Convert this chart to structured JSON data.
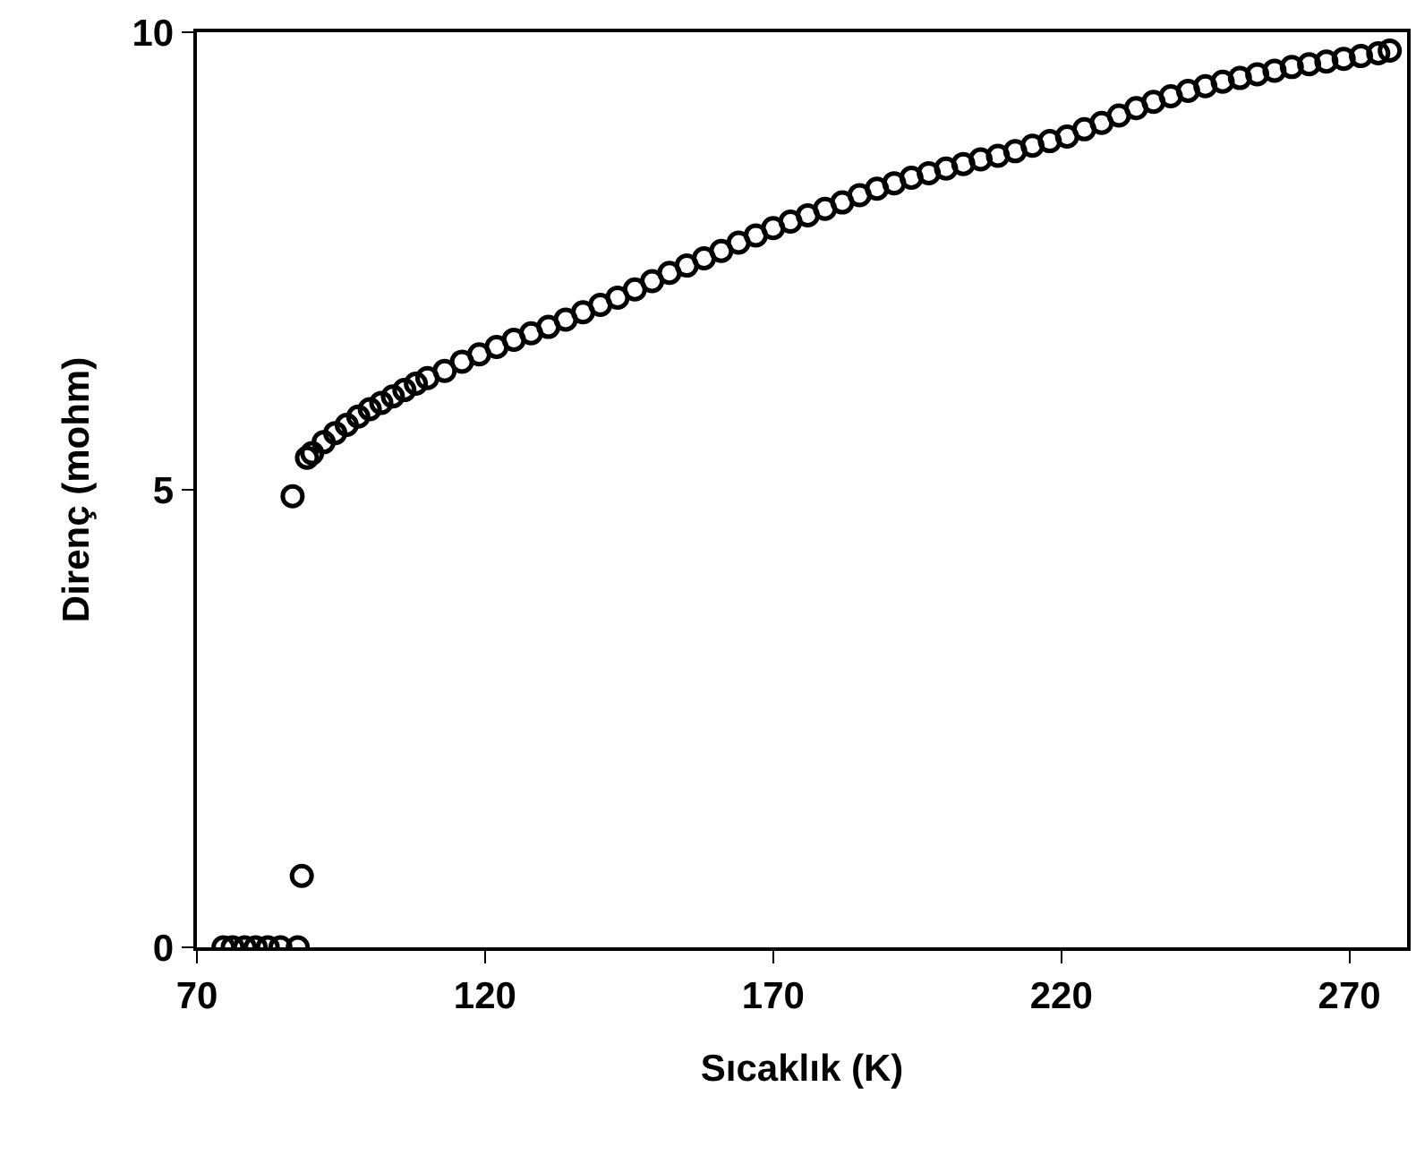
{
  "chart_data": {
    "type": "scatter",
    "xlabel": "Sıcaklık (K)",
    "ylabel": "Direnç (mohm)",
    "xlim": [
      70,
      280
    ],
    "xticks": [
      70,
      120,
      170,
      220,
      270
    ],
    "ylim": [
      0,
      10
    ],
    "yticks": [
      0,
      5,
      10
    ],
    "marker": "circle",
    "series": [
      {
        "color": "#000000",
        "x": [
          74.6,
          76.2,
          78.3,
          80.2,
          82.3,
          84.5,
          87.5,
          86.6,
          88.2,
          89.1,
          90,
          92,
          94,
          96,
          98,
          100,
          102,
          104,
          106,
          108,
          110,
          113,
          116,
          119,
          122,
          125,
          128,
          131,
          134,
          137,
          140,
          143,
          146,
          149,
          152,
          155,
          158,
          161,
          164,
          167,
          170,
          173,
          176,
          179,
          182,
          185,
          188,
          191,
          194,
          197,
          200,
          203,
          206,
          209,
          212,
          215,
          218,
          221,
          224,
          227,
          230,
          233,
          236,
          239,
          242,
          245,
          248,
          251,
          254,
          257,
          260,
          263,
          266,
          269,
          272,
          275,
          277
        ],
        "values": [
          0,
          0,
          0,
          0,
          0,
          0,
          0,
          4.93,
          0.78,
          5.35,
          5.4,
          5.52,
          5.62,
          5.71,
          5.8,
          5.88,
          5.95,
          6.02,
          6.09,
          6.16,
          6.22,
          6.3,
          6.4,
          6.48,
          6.56,
          6.64,
          6.71,
          6.78,
          6.86,
          6.94,
          7.02,
          7.1,
          7.19,
          7.28,
          7.37,
          7.45,
          7.53,
          7.61,
          7.7,
          7.78,
          7.86,
          7.93,
          8.0,
          8.07,
          8.14,
          8.22,
          8.29,
          8.35,
          8.41,
          8.46,
          8.51,
          8.56,
          8.61,
          8.65,
          8.7,
          8.76,
          8.81,
          8.86,
          8.94,
          9.01,
          9.09,
          9.17,
          9.24,
          9.3,
          9.36,
          9.41,
          9.46,
          9.5,
          9.54,
          9.58,
          9.62,
          9.65,
          9.68,
          9.71,
          9.74,
          9.77,
          9.8
        ]
      }
    ]
  }
}
